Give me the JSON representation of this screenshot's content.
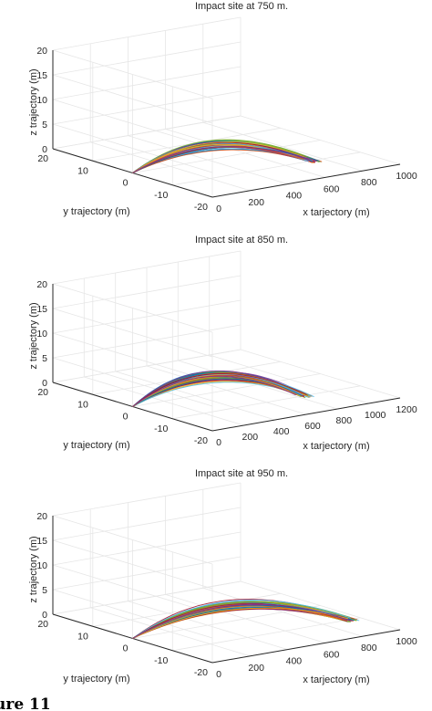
{
  "chart_data": [
    {
      "type": "line",
      "title": "Impact site at 750 m.",
      "xlabel": "x tarjectory (m)",
      "ylabel": "y trajectory (m)",
      "zlabel": "z trajectory (m)",
      "x_ticks": [
        "0",
        "200",
        "400",
        "600",
        "800",
        "1000"
      ],
      "y_ticks": [
        "20",
        "10",
        "0",
        "-10",
        "-20"
      ],
      "z_ticks": [
        "0",
        "5",
        "10",
        "15",
        "20"
      ],
      "xlim": [
        0,
        1000
      ],
      "ylim": [
        -20,
        20
      ],
      "zlim": [
        0,
        20
      ],
      "grid": true,
      "trajectories": {
        "count": 60,
        "x_range": [
          0,
          750
        ],
        "y_range": [
          0,
          -10
        ],
        "z_peak_range": [
          3.8,
          5.2
        ]
      }
    },
    {
      "type": "line",
      "title": "Impact site at 850 m.",
      "xlabel": "x tarjectory (m)",
      "ylabel": "y trajectory (m)",
      "zlabel": "z trajectory (m)",
      "x_ticks": [
        "0",
        "200",
        "400",
        "600",
        "800",
        "1000",
        "1200"
      ],
      "y_ticks": [
        "20",
        "10",
        "0",
        "-10",
        "-20"
      ],
      "z_ticks": [
        "0",
        "5",
        "10",
        "15",
        "20"
      ],
      "xlim": [
        0,
        1200
      ],
      "ylim": [
        -20,
        20
      ],
      "zlim": [
        0,
        20
      ],
      "grid": true,
      "trajectories": {
        "count": 60,
        "x_range": [
          0,
          850
        ],
        "y_range": [
          0,
          -10
        ],
        "z_peak_range": [
          4.2,
          6.0
        ]
      }
    },
    {
      "type": "line",
      "title": "Impact site at 950 m.",
      "xlabel": "x tarjectory (m)",
      "ylabel": "y trajectory (m)",
      "zlabel": "z trajectory (m)",
      "x_ticks": [
        "0",
        "200",
        "400",
        "600",
        "800",
        "1000"
      ],
      "y_ticks": [
        "20",
        "10",
        "0",
        "-10",
        "-20"
      ],
      "z_ticks": [
        "0",
        "5",
        "10",
        "15",
        "20"
      ],
      "xlim": [
        0,
        1000
      ],
      "ylim": [
        -20,
        20
      ],
      "zlim": [
        0,
        20
      ],
      "grid": true,
      "trajectories": {
        "count": 60,
        "x_range": [
          0,
          950
        ],
        "y_range": [
          0,
          -10
        ],
        "z_peak_range": [
          4.0,
          5.6
        ]
      }
    }
  ],
  "caption": "ure 11",
  "colors": {
    "axis": "#262626",
    "grid": "#e6e6e6",
    "series_palette": [
      "#0072bd",
      "#d95319",
      "#edb120",
      "#7e2f8e",
      "#77ac30",
      "#4dbeee",
      "#a2142f"
    ]
  }
}
